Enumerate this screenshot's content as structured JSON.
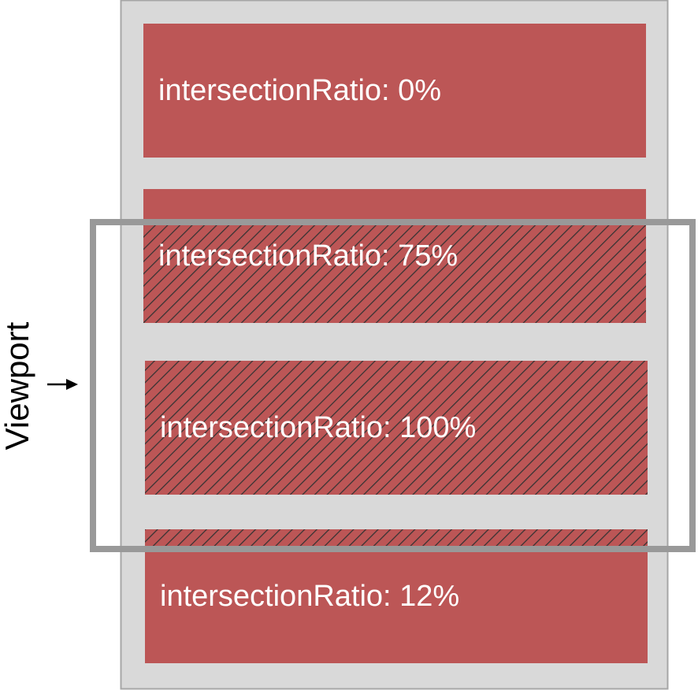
{
  "colors": {
    "container": "#d9d9d9",
    "container_border": "#a6a6a6",
    "box": "#bc5656",
    "hatch": "#333333",
    "viewport": "#999999"
  },
  "viewport_label": "Viewport",
  "boxes": [
    {
      "label": "intersectionRatio: 0%",
      "ratio": 0
    },
    {
      "label": "intersectionRatio: 75%",
      "ratio": 0.75
    },
    {
      "label": "intersectionRatio: 100%",
      "ratio": 1.0
    },
    {
      "label": "intersectionRatio: 12%",
      "ratio": 0.12
    }
  ]
}
